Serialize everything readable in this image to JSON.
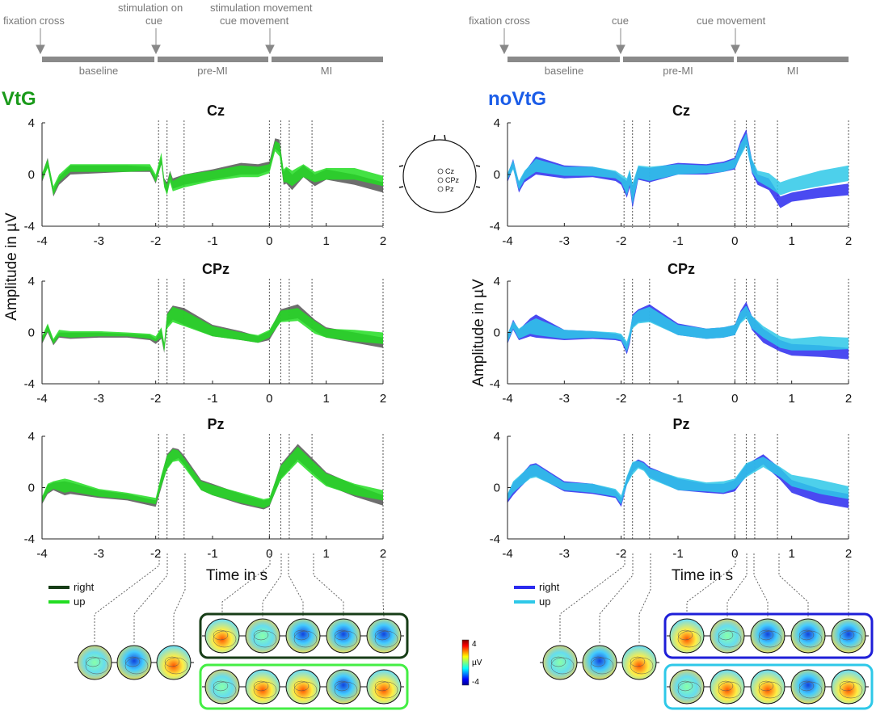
{
  "colors": {
    "VtG_right": "#555555",
    "VtG_up": "#22dd22",
    "VtG_title": "#1a9a1a",
    "noVtG_right": "#2a2aee",
    "noVtG_up": "#2ec8e8",
    "noVtG_title": "#1a5ce8",
    "VtG_frame_right": "#173d17",
    "VtG_frame_up": "#44ee44",
    "noVtG_frame_right": "#1e1ed8",
    "noVtG_frame_up": "#2ec8e8"
  },
  "timelines": [
    {
      "markers": [
        "fixation cross",
        "stimulation on\ncue",
        "stimulation movement\ncue movement"
      ],
      "segments": [
        "baseline",
        "pre-MI",
        "MI"
      ]
    },
    {
      "markers": [
        "fixation cross",
        "cue",
        "cue movement"
      ],
      "segments": [
        "baseline",
        "pre-MI",
        "MI"
      ]
    }
  ],
  "groups": [
    {
      "name": "VtG",
      "legend": [
        "right",
        "up"
      ]
    },
    {
      "name": "noVtG",
      "legend": [
        "right",
        "up"
      ]
    }
  ],
  "head_map": {
    "electrodes": [
      "Cz",
      "CPz",
      "Pz"
    ]
  },
  "colorbar": {
    "max": "4",
    "unit": "µV",
    "min": "-4"
  },
  "chart_data": [
    {
      "type": "area",
      "group": "VtG",
      "title": "Cz",
      "xlabel": "",
      "ylabel": "Amplitude in µV",
      "xlim": [
        -4,
        2
      ],
      "ylim": [
        -4,
        4
      ],
      "xticks": [
        -4,
        -3,
        -2,
        -1,
        0,
        1,
        2
      ],
      "yticks": [
        4,
        0,
        -4
      ],
      "x": [
        -4,
        -3.9,
        -3.8,
        -3.7,
        -3.5,
        -3.0,
        -2.5,
        -2.1,
        -2.0,
        -1.9,
        -1.85,
        -1.8,
        -1.75,
        -1.7,
        -1.5,
        -1.0,
        -0.5,
        -0.2,
        0,
        0.1,
        0.18,
        0.25,
        0.3,
        0.4,
        0.6,
        0.8,
        1.0,
        1.5,
        2.0
      ],
      "series": [
        {
          "name": "right",
          "lo": [
            -0.6,
            0.6,
            -1.7,
            -0.8,
            0.0,
            0.1,
            0.2,
            0.2,
            -0.7,
            0.8,
            -0.9,
            -1.5,
            -0.4,
            -1.1,
            -0.8,
            -0.4,
            0.0,
            0.0,
            0.3,
            2.0,
            1.7,
            -0.8,
            -0.7,
            -1.2,
            -0.2,
            -0.9,
            -0.4,
            -0.8,
            -1.4
          ],
          "hi": [
            0.0,
            1.3,
            -1.1,
            -0.2,
            0.7,
            0.7,
            0.7,
            0.6,
            -0.2,
            1.4,
            -0.3,
            -0.6,
            0.3,
            -0.3,
            0.0,
            0.4,
            0.9,
            0.8,
            1.0,
            2.8,
            2.7,
            0.2,
            0.5,
            0.0,
            0.7,
            0.0,
            0.4,
            0.0,
            -0.6
          ]
        },
        {
          "name": "up",
          "lo": [
            -0.5,
            0.5,
            -1.6,
            -0.6,
            0.2,
            0.2,
            0.2,
            0.3,
            -0.6,
            0.8,
            -1.0,
            -1.6,
            -0.6,
            -1.3,
            -1.0,
            -0.5,
            -0.2,
            -0.2,
            0.1,
            1.8,
            1.4,
            -0.6,
            -0.6,
            -0.9,
            -0.2,
            -0.6,
            -0.4,
            -0.4,
            -0.9
          ],
          "hi": [
            0.1,
            1.2,
            -0.9,
            0.0,
            0.8,
            0.8,
            0.8,
            0.8,
            0.0,
            1.7,
            -0.4,
            -0.8,
            0.2,
            -0.5,
            0.0,
            0.3,
            0.7,
            0.6,
            0.8,
            2.6,
            2.4,
            0.4,
            0.6,
            0.3,
            0.8,
            0.2,
            0.5,
            0.5,
            -0.1
          ]
        }
      ]
    },
    {
      "type": "area",
      "group": "VtG",
      "title": "CPz",
      "xlabel": "",
      "ylabel": "Amplitude in µV",
      "xlim": [
        -4,
        2
      ],
      "ylim": [
        -4,
        4
      ],
      "xticks": [
        -4,
        -3,
        -2,
        -1,
        0,
        1,
        2
      ],
      "yticks": [
        4,
        0,
        -4
      ],
      "x": [
        -4,
        -3.9,
        -3.8,
        -3.7,
        -3.5,
        -3.0,
        -2.5,
        -2.1,
        -2.0,
        -1.9,
        -1.85,
        -1.8,
        -1.7,
        -1.5,
        -1.0,
        -0.5,
        -0.2,
        0,
        0.2,
        0.5,
        0.8,
        1.0,
        1.5,
        2.0
      ],
      "series": [
        {
          "name": "right",
          "lo": [
            -0.9,
            0.0,
            -1.0,
            -0.4,
            -0.5,
            -0.4,
            -0.4,
            -0.6,
            -0.9,
            -0.5,
            -1.6,
            0.5,
            1.0,
            0.6,
            -0.3,
            -0.6,
            -0.8,
            -0.6,
            0.9,
            1.1,
            0.1,
            -0.4,
            -0.8,
            -1.2
          ],
          "hi": [
            -0.4,
            0.6,
            -0.6,
            0.0,
            0.0,
            0.0,
            -0.1,
            -0.2,
            -0.5,
            0.3,
            -0.9,
            1.5,
            2.1,
            1.9,
            0.6,
            0.1,
            -0.3,
            0.1,
            1.8,
            2.2,
            1.0,
            0.4,
            0.0,
            -0.4
          ]
        },
        {
          "name": "up",
          "lo": [
            -0.8,
            0.1,
            -0.9,
            -0.3,
            -0.4,
            -0.3,
            -0.3,
            -0.5,
            -0.7,
            -0.4,
            -1.5,
            0.3,
            0.8,
            0.5,
            -0.3,
            -0.6,
            -0.8,
            -0.4,
            0.8,
            0.9,
            -0.1,
            -0.4,
            -0.7,
            -0.9
          ],
          "hi": [
            -0.3,
            0.7,
            -0.5,
            0.2,
            0.1,
            0.1,
            0.0,
            -0.1,
            -0.3,
            0.4,
            -0.8,
            1.4,
            2.0,
            1.7,
            0.5,
            0.0,
            -0.2,
            0.2,
            1.7,
            1.9,
            0.9,
            0.3,
            0.2,
            0.0
          ]
        }
      ]
    },
    {
      "type": "area",
      "group": "VtG",
      "title": "Pz",
      "xlabel": "Time in s",
      "ylabel": "Amplitude in µV",
      "xlim": [
        -4,
        2
      ],
      "ylim": [
        -4,
        4
      ],
      "xticks": [
        -4,
        -3,
        -2,
        -1,
        0,
        1,
        2
      ],
      "yticks": [
        4,
        0,
        -4
      ],
      "x": [
        -4,
        -3.9,
        -3.8,
        -3.6,
        -3.5,
        -3.0,
        -2.5,
        -2.0,
        -1.9,
        -1.8,
        -1.7,
        -1.6,
        -1.5,
        -1.2,
        -1.0,
        -0.5,
        -0.1,
        0,
        0.2,
        0.5,
        0.8,
        1.0,
        1.5,
        2.0
      ],
      "series": [
        {
          "name": "right",
          "lo": [
            -1.3,
            -0.5,
            -0.2,
            -0.6,
            -0.5,
            -0.8,
            -1.0,
            -1.5,
            0.0,
            1.5,
            2.1,
            2.3,
            1.8,
            -0.2,
            -0.6,
            -1.3,
            -1.7,
            -1.5,
            0.7,
            2.2,
            1.0,
            0.2,
            -0.7,
            -1.4
          ],
          "hi": [
            -0.8,
            0.2,
            0.4,
            0.5,
            0.4,
            -0.2,
            -0.5,
            -1.0,
            0.9,
            2.6,
            3.1,
            3.0,
            2.5,
            0.6,
            0.3,
            -0.5,
            -1.0,
            -0.9,
            1.8,
            3.4,
            2.1,
            1.2,
            0.2,
            -0.6
          ]
        },
        {
          "name": "up",
          "lo": [
            -1.2,
            -0.4,
            -0.1,
            -0.4,
            -0.3,
            -0.7,
            -0.9,
            -1.3,
            0.1,
            1.4,
            2.0,
            2.1,
            1.6,
            -0.2,
            -0.6,
            -1.2,
            -1.6,
            -1.4,
            0.6,
            2.0,
            0.8,
            0.1,
            -0.6,
            -1.0
          ],
          "hi": [
            -0.7,
            0.3,
            0.5,
            0.7,
            0.6,
            -0.1,
            -0.4,
            -0.8,
            1.0,
            2.5,
            3.0,
            2.9,
            2.3,
            0.5,
            0.2,
            -0.4,
            -0.9,
            -0.8,
            1.7,
            3.2,
            1.9,
            1.1,
            0.3,
            -0.2
          ]
        }
      ]
    },
    {
      "type": "area",
      "group": "noVtG",
      "title": "Cz",
      "xlabel": "",
      "ylabel": "Amplitude in µV",
      "xlim": [
        -4,
        2
      ],
      "ylim": [
        -4,
        4
      ],
      "xticks": [
        -4,
        -3,
        -2,
        -1,
        0,
        1,
        2
      ],
      "yticks": [
        4,
        0,
        -4
      ],
      "x": [
        -4,
        -3.9,
        -3.8,
        -3.7,
        -3.5,
        -3.0,
        -2.5,
        -2.1,
        -2.0,
        -1.9,
        -1.85,
        -1.8,
        -1.7,
        -1.5,
        -1.0,
        -0.5,
        -0.2,
        0,
        0.1,
        0.2,
        0.3,
        0.4,
        0.6,
        0.8,
        1.0,
        1.5,
        2.0
      ],
      "series": [
        {
          "name": "right",
          "lo": [
            -0.6,
            0.5,
            -1.4,
            -0.6,
            0.0,
            -0.3,
            -0.2,
            -0.5,
            -0.8,
            -1.8,
            -1.0,
            -2.6,
            -0.4,
            -0.6,
            0.0,
            0.0,
            0.2,
            0.4,
            1.5,
            2.4,
            0.1,
            -0.8,
            -1.2,
            -2.6,
            -2.1,
            -1.8,
            -1.6
          ],
          "hi": [
            0.0,
            1.2,
            -0.6,
            0.2,
            1.4,
            0.7,
            0.6,
            0.2,
            -0.2,
            -0.5,
            0.3,
            -0.9,
            0.6,
            0.5,
            0.9,
            0.8,
            1.0,
            1.3,
            2.6,
            3.5,
            1.2,
            0.0,
            -0.3,
            -1.7,
            -1.4,
            -1.0,
            -0.7
          ]
        },
        {
          "name": "up",
          "lo": [
            -0.4,
            0.4,
            -1.2,
            -0.4,
            0.2,
            -0.1,
            -0.1,
            -0.3,
            -0.6,
            -1.6,
            -0.8,
            -2.3,
            -0.3,
            -0.5,
            0.0,
            0.1,
            0.2,
            0.5,
            1.4,
            2.2,
            0.2,
            -0.5,
            -1.0,
            -1.6,
            -1.3,
            -0.9,
            -0.5
          ],
          "hi": [
            0.1,
            1.1,
            -0.5,
            0.3,
            1.2,
            0.6,
            0.6,
            0.3,
            0.0,
            -0.3,
            0.4,
            -0.7,
            0.7,
            0.6,
            0.8,
            0.7,
            0.9,
            1.2,
            2.4,
            3.2,
            1.2,
            0.3,
            0.1,
            -0.6,
            -0.3,
            0.3,
            0.7
          ]
        }
      ]
    },
    {
      "type": "area",
      "group": "noVtG",
      "title": "CPz",
      "xlabel": "",
      "ylabel": "Amplitude in µV",
      "xlim": [
        -4,
        2
      ],
      "ylim": [
        -4,
        4
      ],
      "xticks": [
        -4,
        -3,
        -2,
        -1,
        0,
        1,
        2
      ],
      "yticks": [
        4,
        0,
        -4
      ],
      "x": [
        -4,
        -3.9,
        -3.8,
        -3.6,
        -3.5,
        -3.0,
        -2.5,
        -2.1,
        -2.0,
        -1.9,
        -1.85,
        -1.8,
        -1.7,
        -1.5,
        -1.0,
        -0.5,
        -0.2,
        0,
        0.1,
        0.2,
        0.3,
        0.5,
        0.8,
        1.0,
        1.5,
        2.0
      ],
      "series": [
        {
          "name": "right",
          "lo": [
            -0.9,
            0.2,
            -0.6,
            -0.3,
            -0.4,
            -0.6,
            -0.5,
            -0.6,
            -0.7,
            -1.7,
            -0.9,
            0.4,
            0.8,
            0.9,
            -0.2,
            -0.5,
            -0.4,
            -0.2,
            0.8,
            1.3,
            0.2,
            -0.8,
            -1.5,
            -1.8,
            -1.9,
            -2.1
          ],
          "hi": [
            -0.2,
            1.0,
            0.2,
            1.1,
            1.4,
            0.2,
            0.1,
            -0.1,
            -0.2,
            -0.9,
            -0.1,
            1.4,
            1.8,
            2.2,
            0.7,
            0.3,
            0.4,
            0.6,
            1.7,
            2.4,
            1.3,
            0.3,
            -0.6,
            -0.9,
            -1.0,
            -1.2
          ]
        },
        {
          "name": "up",
          "lo": [
            -0.8,
            0.3,
            -0.5,
            -0.1,
            -0.2,
            -0.5,
            -0.4,
            -0.5,
            -0.6,
            -1.5,
            -0.7,
            0.3,
            0.7,
            0.8,
            -0.2,
            -0.5,
            -0.4,
            -0.2,
            0.7,
            1.1,
            0.3,
            -0.4,
            -1.2,
            -1.4,
            -1.4,
            -1.3
          ],
          "hi": [
            -0.1,
            0.9,
            0.3,
            0.9,
            1.1,
            0.2,
            0.1,
            0.0,
            -0.1,
            -0.7,
            0.1,
            1.3,
            1.7,
            2.0,
            0.6,
            0.3,
            0.4,
            0.6,
            1.6,
            2.1,
            1.3,
            0.5,
            -0.3,
            -0.5,
            -0.3,
            -0.4
          ]
        }
      ]
    },
    {
      "type": "area",
      "group": "noVtG",
      "title": "Pz",
      "xlabel": "Time in s",
      "ylabel": "Amplitude in µV",
      "xlim": [
        -4,
        2
      ],
      "ylim": [
        -4,
        4
      ],
      "xticks": [
        -4,
        -3,
        -2,
        -1,
        0,
        1,
        2
      ],
      "yticks": [
        4,
        0,
        -4
      ],
      "x": [
        -4,
        -3.9,
        -3.8,
        -3.6,
        -3.5,
        -3.0,
        -2.5,
        -2.1,
        -2.0,
        -1.9,
        -1.8,
        -1.7,
        -1.6,
        -1.5,
        -1.0,
        -0.5,
        -0.2,
        0,
        0.2,
        0.5,
        0.8,
        1.0,
        1.5,
        2.0
      ],
      "series": [
        {
          "name": "right",
          "lo": [
            -1.2,
            -0.6,
            -0.1,
            0.8,
            0.9,
            -0.3,
            -0.5,
            -0.8,
            -1.5,
            0.2,
            1.2,
            1.6,
            1.4,
            0.8,
            -0.2,
            -0.4,
            -0.5,
            -0.3,
            0.9,
            1.8,
            0.6,
            -0.4,
            -1.2,
            -1.6
          ],
          "hi": [
            -0.6,
            0.4,
            0.8,
            1.8,
            1.9,
            0.5,
            0.3,
            -0.2,
            -0.8,
            0.8,
            1.9,
            2.2,
            2.0,
            1.6,
            0.7,
            0.3,
            0.3,
            0.6,
            1.8,
            2.6,
            1.5,
            0.6,
            -0.1,
            -0.5
          ]
        },
        {
          "name": "up",
          "lo": [
            -1.0,
            -0.4,
            0.0,
            0.7,
            0.8,
            -0.2,
            -0.4,
            -0.7,
            -1.3,
            0.2,
            1.0,
            1.5,
            1.3,
            0.7,
            -0.2,
            -0.3,
            -0.4,
            -0.1,
            0.8,
            1.6,
            0.8,
            0.1,
            -0.5,
            -0.9
          ],
          "hi": [
            -0.5,
            0.5,
            0.9,
            1.7,
            1.8,
            0.4,
            0.3,
            -0.1,
            -0.6,
            0.9,
            2.0,
            2.1,
            1.9,
            1.5,
            0.8,
            0.4,
            0.5,
            0.7,
            1.9,
            2.4,
            1.6,
            1.0,
            0.6,
            0.1
          ]
        }
      ]
    }
  ]
}
